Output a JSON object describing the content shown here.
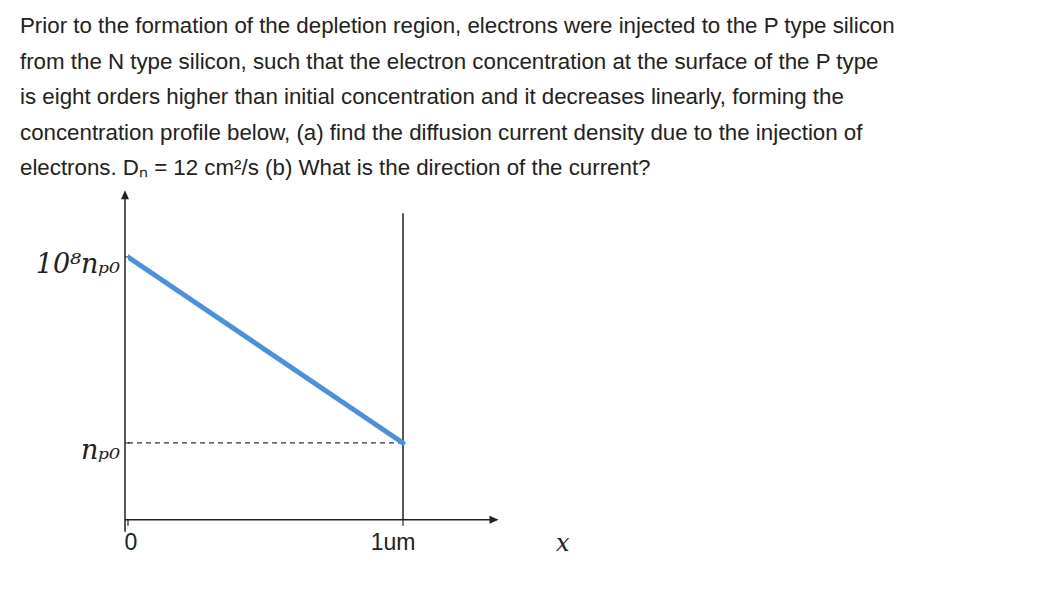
{
  "question": {
    "lines": [
      "Prior to the formation of the depletion region, electrons were injected to the P type silicon",
      "from the N type silicon, such that the electron concentration at the surface of the P type",
      "is eight orders higher than initial concentration and it decreases linearly, forming the",
      "concentration profile below, (a) find the diffusion current density due to the injection of",
      "electrons. Dₙ = 12 cm²/s (b) What is the direction of the current?"
    ]
  },
  "chart_data": {
    "type": "line",
    "x": [
      0,
      1
    ],
    "values": [
      100000000,
      1
    ],
    "color": "#4a90e2",
    "xlabel": "x",
    "xlim": [
      0,
      1.34
    ],
    "xticks": [
      0,
      {
        "value": 1,
        "label": "1um"
      }
    ],
    "log": "y",
    "ylim": [
      0.0005,
      50000000000
    ],
    "yticks": [
      {
        "value": 1,
        "label": "nₚ₀"
      },
      {
        "value": 100000000,
        "label": "10⁸nₚ₀"
      }
    ]
  }
}
